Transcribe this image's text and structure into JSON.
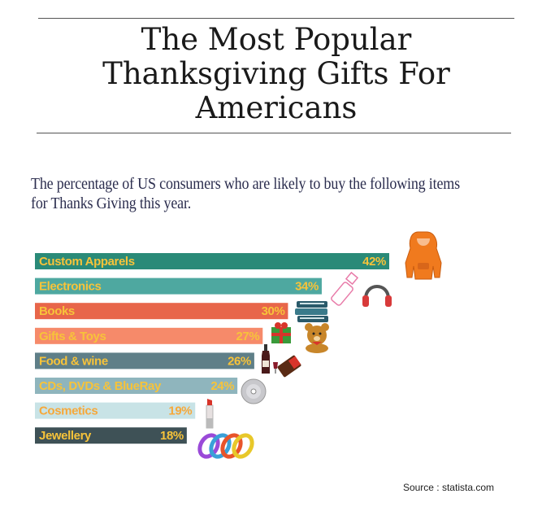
{
  "title_lines": [
    "The Most Popular",
    "Thanksgiving Gifts For",
    "Americans"
  ],
  "subtitle": "The percentage of US consumers who are likely to buy the following items for Thanks Giving this year.",
  "source": "Source : statista.com",
  "chart_data": {
    "type": "bar",
    "orientation": "horizontal",
    "categories": [
      "Custom Apparels",
      "Electronics",
      "Books",
      "Gifts & Toys",
      "Food & wine",
      "CDs, DVDs & BlueRay",
      "Cosmetics",
      "Jewellery"
    ],
    "values": [
      42,
      34,
      30,
      27,
      26,
      24,
      19,
      18
    ],
    "value_labels": [
      "42%",
      "34%",
      "30%",
      "27%",
      "26%",
      "24%",
      "19%",
      "18%"
    ],
    "colors": [
      "#2a8a78",
      "#4ea8a0",
      "#e8664a",
      "#f68a6a",
      "#5f7f88",
      "#8fb5bd",
      "#c8e3e6",
      "#3e5156"
    ],
    "label_colors": [
      "#f7c33a",
      "#f7c33a",
      "#f7c33a",
      "#f7c33a",
      "#f7c33a",
      "#f7c33a",
      "#f6a83a",
      "#f7c33a"
    ],
    "icons": [
      "hoodie-icon",
      "usb-headphones-icon",
      "books-icon",
      "gift-teddy-icon",
      "wine-chocolate-icon",
      "disc-icon",
      "lipstick-icon",
      "bracelets-icon"
    ]
  }
}
